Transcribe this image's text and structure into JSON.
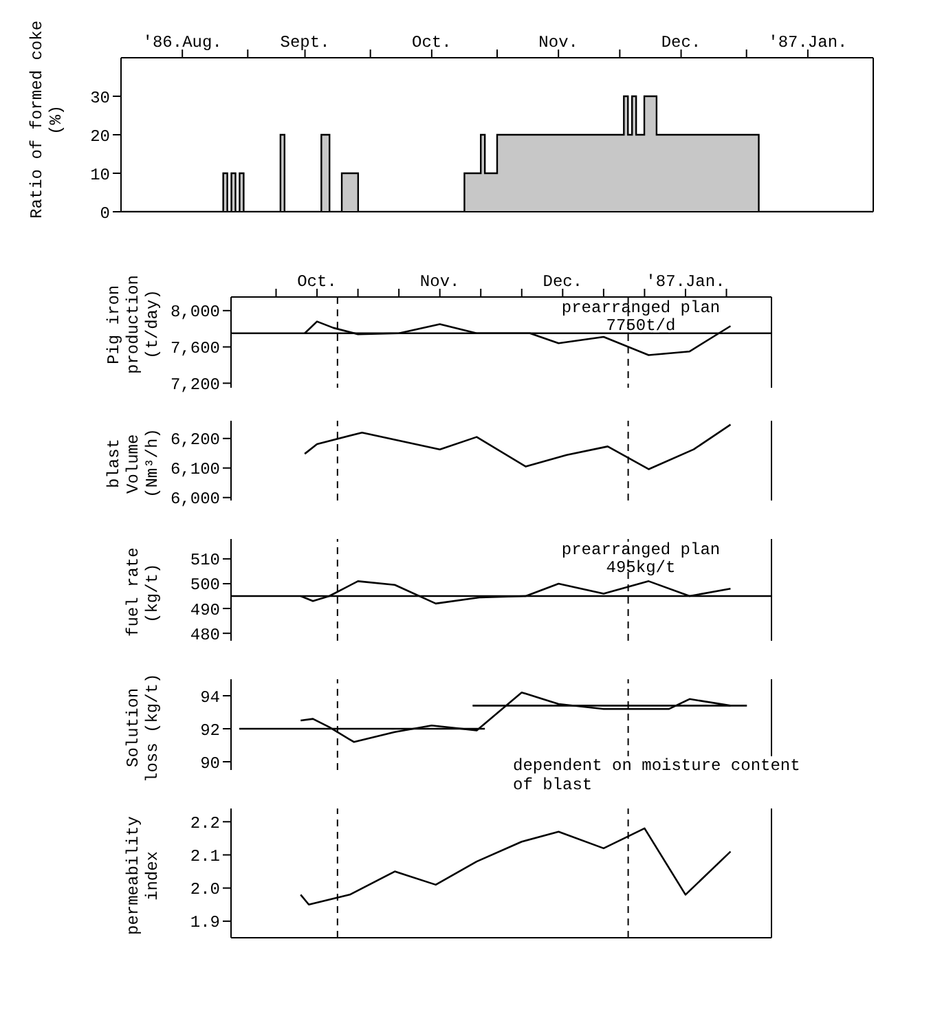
{
  "chart_data": [
    {
      "type": "step",
      "ylabel": "Ratio of formed coke (%)",
      "color": "#000000",
      "x": [
        "1986-08-01",
        "1986-08-26",
        "1986-08-27",
        "1986-08-28",
        "1986-08-29",
        "1986-08-30",
        "1986-08-31",
        "1986-09-09",
        "1986-09-10",
        "1986-09-19",
        "1986-09-21",
        "1986-09-24",
        "1986-09-28",
        "1986-10-24",
        "1986-10-28",
        "1986-10-29",
        "1986-11-01",
        "1986-12-02",
        "1986-12-03",
        "1986-12-04",
        "1986-12-05",
        "1986-12-07",
        "1986-12-10",
        "1987-01-04",
        "1987-02-01"
      ],
      "values": [
        0,
        10,
        0,
        10,
        0,
        10,
        0,
        20,
        0,
        20,
        0,
        10,
        0,
        10,
        20,
        10,
        20,
        30,
        20,
        30,
        20,
        30,
        20,
        0,
        0
      ],
      "xlim": [
        "1986-08-01",
        "1987-02-01"
      ],
      "xticks": [
        {
          "value": "1986-08-16",
          "label": "'86.Aug."
        },
        {
          "value": "1986-09-01",
          "label": null
        },
        {
          "value": "1986-09-15",
          "label": "Sept."
        },
        {
          "value": "1986-10-01",
          "label": null
        },
        {
          "value": "1986-10-16",
          "label": "Oct."
        },
        {
          "value": "1986-11-01",
          "label": null
        },
        {
          "value": "1986-11-16",
          "label": "Nov."
        },
        {
          "value": "1986-12-01",
          "label": null
        },
        {
          "value": "1986-12-16",
          "label": "Dec."
        },
        {
          "value": "1987-01-01",
          "label": null
        },
        {
          "value": "1987-01-16",
          "label": "'87.Jan."
        }
      ],
      "ylim": [
        0,
        40
      ],
      "yticks": [
        0,
        10,
        20,
        30
      ]
    },
    {
      "type": "line",
      "ylabel": "Pig iron production (t/day)",
      "color": "#000000",
      "x": [
        "1986-10-16",
        "1986-10-19",
        "1986-10-23",
        "1986-10-29",
        "1986-11-08",
        "1986-11-18",
        "1986-11-27",
        "1986-12-10",
        "1986-12-17",
        "1986-12-28",
        "1987-01-08",
        "1987-01-18",
        "1987-01-28"
      ],
      "values": [
        7750,
        7880,
        7810,
        7740,
        7750,
        7850,
        7750,
        7750,
        7640,
        7710,
        7510,
        7550,
        7830
      ],
      "xlim": [
        "1986-09-28",
        "1987-02-07"
      ],
      "xticks": [
        {
          "value": "1986-10-09",
          "label": null
        },
        {
          "value": "1986-10-19",
          "label": "Oct."
        },
        {
          "value": "1986-10-29",
          "label": null
        },
        {
          "value": "1986-11-08",
          "label": null
        },
        {
          "value": "1986-11-18",
          "label": "Nov."
        },
        {
          "value": "1986-11-28",
          "label": null
        },
        {
          "value": "1986-12-08",
          "label": null
        },
        {
          "value": "1986-12-18",
          "label": "Dec."
        },
        {
          "value": "1986-12-28",
          "label": null
        },
        {
          "value": "1987-01-07",
          "label": null
        },
        {
          "value": "1987-01-17",
          "label": "'87.Jan."
        },
        {
          "value": "1987-01-27",
          "label": null
        }
      ],
      "ylim": [
        7150,
        8150
      ],
      "yticks": [
        {
          "value": 8000,
          "label": "8,000"
        },
        {
          "value": 7600,
          "label": "7,600"
        },
        {
          "value": 7200,
          "label": "7,200"
        }
      ],
      "ref_lines": [
        {
          "axis": "y",
          "value": 7750,
          "label": "prearranged plan\n7750t/d"
        },
        {
          "axis": "x",
          "value": "1986-10-24",
          "line_style": "dashed"
        },
        {
          "axis": "x",
          "value": "1987-01-03",
          "line_style": "dashed"
        }
      ]
    },
    {
      "type": "line",
      "ylabel": "blast Volume (Nm³/h)",
      "color": "#000000",
      "tick_labels": "y",
      "x": [
        "1986-10-16",
        "1986-10-19",
        "1986-10-30",
        "1986-11-18",
        "1986-11-27",
        "1986-12-09",
        "1986-12-19",
        "1986-12-29",
        "1987-01-08",
        "1987-01-19",
        "1987-01-28"
      ],
      "values": [
        6148,
        6181,
        6220,
        6163,
        6205,
        6105,
        6144,
        6173,
        6096,
        6163,
        6247
      ],
      "xlim": [
        "1986-09-28",
        "1987-02-07"
      ],
      "ylim": [
        5990,
        6260
      ],
      "yticks": [
        {
          "value": 6200,
          "label": "6,200"
        },
        {
          "value": 6100,
          "label": "6,100"
        },
        {
          "value": 6000,
          "label": "6,000"
        }
      ],
      "ref_lines": [
        {
          "axis": "x",
          "value": "1986-10-24",
          "line_style": "dashed"
        },
        {
          "axis": "x",
          "value": "1987-01-03",
          "line_style": "dashed"
        }
      ]
    },
    {
      "type": "line",
      "ylabel": "fuel rate (kg/t)",
      "color": "#000000",
      "tick_labels": "y",
      "x": [
        "1986-10-15",
        "1986-10-18",
        "1986-10-22",
        "1986-10-29",
        "1986-11-07",
        "1986-11-17",
        "1986-11-28",
        "1986-12-09",
        "1986-12-17",
        "1986-12-28",
        "1987-01-08",
        "1987-01-18",
        "1987-01-28"
      ],
      "values": [
        495,
        493,
        495,
        501,
        499.5,
        492,
        494.5,
        495,
        500,
        496,
        501,
        495,
        498
      ],
      "xlim": [
        "1986-09-28",
        "1987-02-07"
      ],
      "ylim": [
        477,
        518
      ],
      "yticks": [
        510,
        500,
        490,
        480
      ],
      "ref_lines": [
        {
          "axis": "y",
          "value": 495,
          "label": "prearranged plan\n495kg/t"
        },
        {
          "axis": "x",
          "value": "1986-10-24",
          "line_style": "dashed"
        },
        {
          "axis": "x",
          "value": "1987-01-03",
          "line_style": "dashed"
        }
      ]
    },
    {
      "type": "line",
      "ylabel": "Solution loss (kg/t)",
      "tick_labels": "y",
      "series": [
        {
          "color": "#000000",
          "x": [
            "1986-10-15",
            "1986-10-18",
            "1986-10-22",
            "1986-10-28",
            "1986-11-07",
            "1986-11-16",
            "1986-11-27",
            "1986-12-08",
            "1986-12-17",
            "1986-12-28",
            "1987-01-13",
            "1987-01-18",
            "1987-01-28"
          ],
          "values": [
            92.5,
            92.6,
            92.1,
            91.2,
            91.8,
            92.2,
            91.9,
            94.2,
            93.5,
            93.2,
            93.2,
            93.8,
            93.4
          ]
        },
        {
          "color": "#000000",
          "x": [
            "1986-09-30",
            "1986-11-29"
          ],
          "values": [
            92,
            92
          ]
        },
        {
          "color": "#000000",
          "x": [
            "1986-11-26",
            "1987-02-01"
          ],
          "values": [
            93.4,
            93.4
          ]
        }
      ],
      "xlim": [
        "1986-09-28",
        "1987-02-07"
      ],
      "ylim": [
        89.5,
        95
      ],
      "yticks": [
        94,
        92,
        90
      ],
      "annotations": [
        "dependent on moisture content of blast"
      ],
      "ref_lines": [
        {
          "axis": "x",
          "value": "1986-10-24",
          "line_style": "dashed"
        },
        {
          "axis": "x",
          "value": "1987-01-03",
          "line_style": "dashed"
        }
      ]
    },
    {
      "type": "line",
      "ylabel": "permeability index",
      "color": "#000000",
      "tick_labels": "y",
      "x": [
        "1986-10-15",
        "1986-10-17",
        "1986-10-27",
        "1986-11-07",
        "1986-11-17",
        "1986-11-27",
        "1986-12-08",
        "1986-12-17",
        "1986-12-28",
        "1987-01-07",
        "1987-01-17",
        "1987-01-28"
      ],
      "values": [
        1.98,
        1.95,
        1.98,
        2.05,
        2.01,
        2.08,
        2.14,
        2.17,
        2.12,
        2.18,
        1.98,
        2.11
      ],
      "xlim": [
        "1986-09-28",
        "1987-02-07"
      ],
      "ylim": [
        1.85,
        2.24
      ],
      "yticks": [
        {
          "value": 2.2,
          "label": "2.2"
        },
        {
          "value": 2.1,
          "label": "2.1"
        },
        {
          "value": 2.0,
          "label": "2.0"
        },
        {
          "value": 1.9,
          "label": "1.9"
        }
      ],
      "ref_lines": [
        {
          "axis": "x",
          "value": "1986-10-24",
          "line_style": "dashed"
        },
        {
          "axis": "x",
          "value": "1987-01-03",
          "line_style": "dashed"
        }
      ]
    }
  ]
}
